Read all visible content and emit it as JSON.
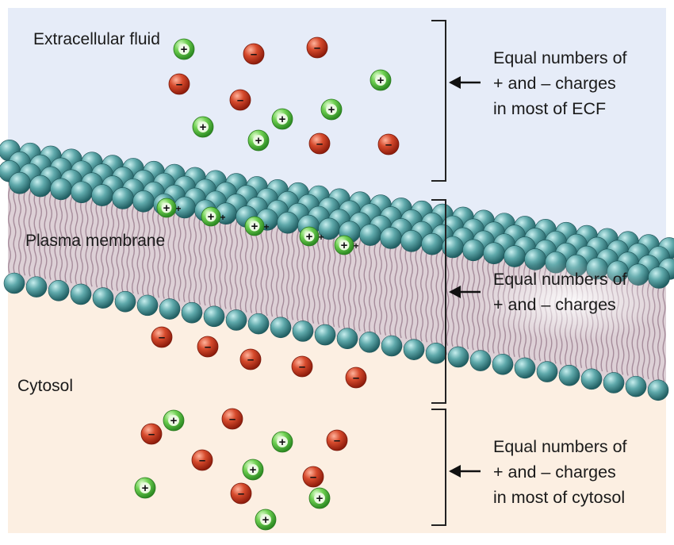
{
  "regions": {
    "ecf": "Extracellular fluid",
    "membrane": "Plasma membrane",
    "cytosol": "Cytosol"
  },
  "annotations": {
    "top": [
      "Equal numbers of",
      "+ and – charges",
      "in most of ECF"
    ],
    "middle": [
      "Equal numbers of",
      "+ and – charges"
    ],
    "bottom": [
      "Equal numbers of",
      "+ and – charges",
      "in most of cytosol"
    ]
  },
  "symbols": {
    "positive": "+",
    "negative": "–"
  },
  "colors": {
    "ecf_background": "#e6ecf8",
    "cytosol_background": "#fcefe2",
    "phospholipid_head": "#3f8f92",
    "lipid_tail": "#c7b0bb",
    "positive_ion": "#55bd44",
    "negative_ion": "#c9331e"
  }
}
